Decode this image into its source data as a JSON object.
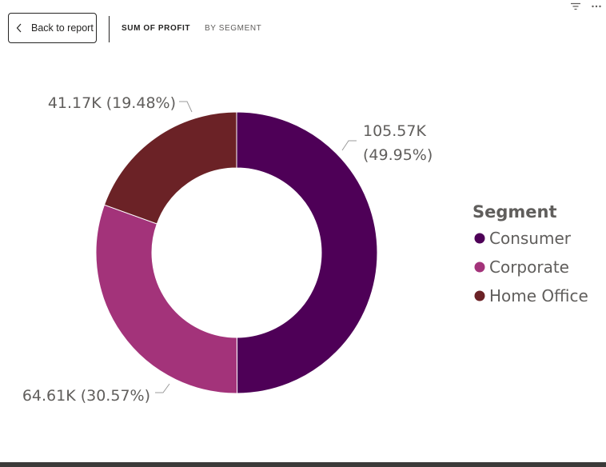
{
  "toolbar": {
    "back_label": "Back to report",
    "breadcrumb": [
      "SUM OF PROFIT",
      "BY SEGMENT"
    ]
  },
  "icons": {
    "back": "chevron-left-icon",
    "filter": "filter-icon",
    "more": "more-options-icon"
  },
  "colors": {
    "Consumer": "#4e0057",
    "Corporate": "#a3337a",
    "Home Office": "#6b2226"
  },
  "chart_data": {
    "type": "donut",
    "legend_title": "Segment",
    "legend_position": "right",
    "categories": [
      "Consumer",
      "Corporate",
      "Home Office"
    ],
    "values": [
      105570,
      64610,
      41170
    ],
    "percents": [
      49.95,
      30.57,
      19.48
    ],
    "data_labels": [
      "105.57K (49.95%)",
      "64.61K (30.57%)",
      "41.17K (19.48%)"
    ]
  }
}
